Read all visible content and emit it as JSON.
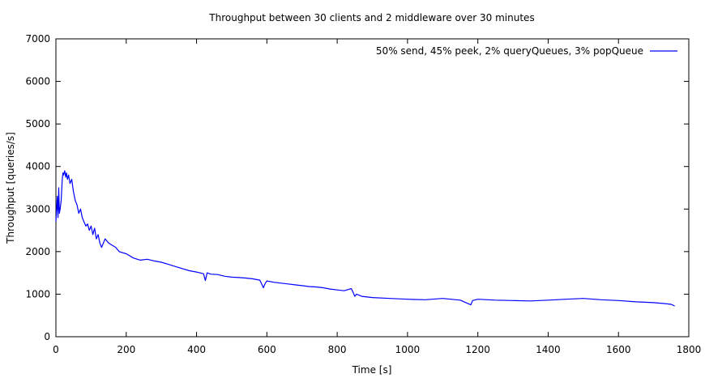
{
  "chart_data": {
    "type": "line",
    "title": "Throughput between 30 clients and 2 middleware over 30 minutes",
    "xlabel": "Time [s]",
    "ylabel": "Throughput [queries/s]",
    "xlim": [
      0,
      1800
    ],
    "ylim": [
      0,
      7000
    ],
    "xticks": [
      0,
      200,
      400,
      600,
      800,
      1000,
      1200,
      1400,
      1600,
      1800
    ],
    "yticks": [
      0,
      1000,
      2000,
      3000,
      4000,
      5000,
      6000,
      7000
    ],
    "grid": false,
    "legend_position": "top-right",
    "series": [
      {
        "name": "50% send, 45% peek, 2% queryQueues, 3% popQueue",
        "color": "#0000ff",
        "x": [
          0,
          2,
          4,
          6,
          8,
          10,
          12,
          15,
          18,
          20,
          22,
          25,
          28,
          30,
          33,
          36,
          40,
          45,
          50,
          55,
          60,
          65,
          70,
          75,
          80,
          85,
          90,
          95,
          100,
          105,
          110,
          115,
          120,
          125,
          130,
          140,
          150,
          160,
          170,
          180,
          200,
          220,
          240,
          260,
          280,
          300,
          320,
          340,
          360,
          380,
          400,
          420,
          425,
          430,
          440,
          460,
          480,
          500,
          520,
          540,
          560,
          580,
          590,
          595,
          600,
          620,
          640,
          660,
          680,
          700,
          720,
          740,
          760,
          780,
          800,
          820,
          840,
          845,
          850,
          855,
          870,
          900,
          950,
          1000,
          1050,
          1100,
          1150,
          1180,
          1185,
          1200,
          1250,
          1300,
          1350,
          1400,
          1450,
          1500,
          1550,
          1600,
          1650,
          1700,
          1730,
          1750,
          1760
        ],
        "y": [
          2700,
          3000,
          3300,
          2800,
          3500,
          2900,
          3000,
          3200,
          3700,
          3850,
          3800,
          3900,
          3750,
          3850,
          3700,
          3800,
          3600,
          3700,
          3400,
          3200,
          3100,
          2900,
          3000,
          2800,
          2700,
          2600,
          2650,
          2500,
          2600,
          2400,
          2550,
          2300,
          2400,
          2200,
          2100,
          2300,
          2200,
          2150,
          2100,
          2000,
          1950,
          1850,
          1800,
          1820,
          1780,
          1750,
          1700,
          1650,
          1600,
          1550,
          1520,
          1480,
          1320,
          1500,
          1470,
          1460,
          1420,
          1400,
          1390,
          1380,
          1360,
          1330,
          1150,
          1250,
          1310,
          1280,
          1260,
          1240,
          1220,
          1200,
          1180,
          1170,
          1150,
          1120,
          1100,
          1080,
          1130,
          1050,
          950,
          1000,
          950,
          920,
          900,
          880,
          870,
          900,
          860,
          750,
          850,
          880,
          860,
          850,
          840,
          860,
          880,
          900,
          870,
          850,
          820,
          800,
          780,
          760,
          720
        ]
      }
    ]
  }
}
